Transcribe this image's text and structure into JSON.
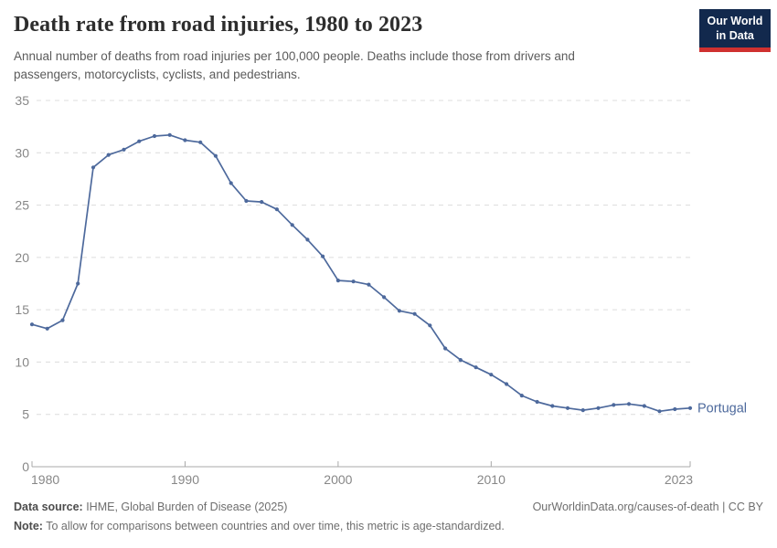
{
  "header": {
    "title": "Death rate from road injuries, 1980 to 2023",
    "subtitle": "Annual number of deaths from road injuries per 100,000 people. Deaths include those from drivers and passengers, motorcyclists, cyclists, and pedestrians.",
    "logo": {
      "line1": "Our World",
      "line2": "in Data",
      "bg_color": "#12294d",
      "bar_color": "#cf3130"
    }
  },
  "chart_data": {
    "type": "line",
    "title": "Death rate from road injuries, 1980 to 2023",
    "xlabel": "",
    "ylabel": "",
    "xlim": [
      1980,
      2023
    ],
    "ylim": [
      0,
      35
    ],
    "x_ticks": [
      1980,
      1990,
      2000,
      2010,
      2023
    ],
    "y_ticks": [
      0,
      5,
      10,
      15,
      20,
      25,
      30,
      35
    ],
    "grid": "horizontal-dashed",
    "legend_position": "end-of-line-label",
    "series": [
      {
        "name": "Portugal",
        "color": "#4d699c",
        "x": [
          1980,
          1981,
          1982,
          1983,
          1984,
          1985,
          1986,
          1987,
          1988,
          1989,
          1990,
          1991,
          1992,
          1993,
          1994,
          1995,
          1996,
          1997,
          1998,
          1999,
          2000,
          2001,
          2002,
          2003,
          2004,
          2005,
          2006,
          2007,
          2008,
          2009,
          2010,
          2011,
          2012,
          2013,
          2014,
          2015,
          2016,
          2017,
          2018,
          2019,
          2020,
          2021,
          2022,
          2023
        ],
        "values": [
          13.6,
          13.2,
          14.0,
          17.5,
          28.6,
          29.8,
          30.3,
          31.1,
          31.6,
          31.7,
          31.2,
          31.0,
          29.7,
          27.1,
          25.4,
          25.3,
          24.6,
          23.1,
          21.7,
          20.1,
          17.8,
          17.7,
          17.4,
          16.2,
          14.9,
          14.6,
          13.5,
          11.3,
          10.2,
          9.5,
          8.8,
          7.9,
          6.8,
          6.2,
          5.8,
          5.6,
          5.4,
          5.6,
          5.9,
          6.0,
          5.8,
          5.3,
          5.5,
          5.6
        ]
      }
    ]
  },
  "style": {
    "grid_color": "#dcdcdc",
    "axis_color": "#a8a8a8",
    "tick_label_color": "#878787"
  },
  "footer": {
    "source_label": "Data source:",
    "source_text": " IHME, Global Burden of Disease (2025)",
    "credit": "OurWorldinData.org/causes-of-death | CC BY",
    "note_label": "Note:",
    "note_text": " To allow for comparisons between countries and over time, this metric is age-standardized."
  }
}
